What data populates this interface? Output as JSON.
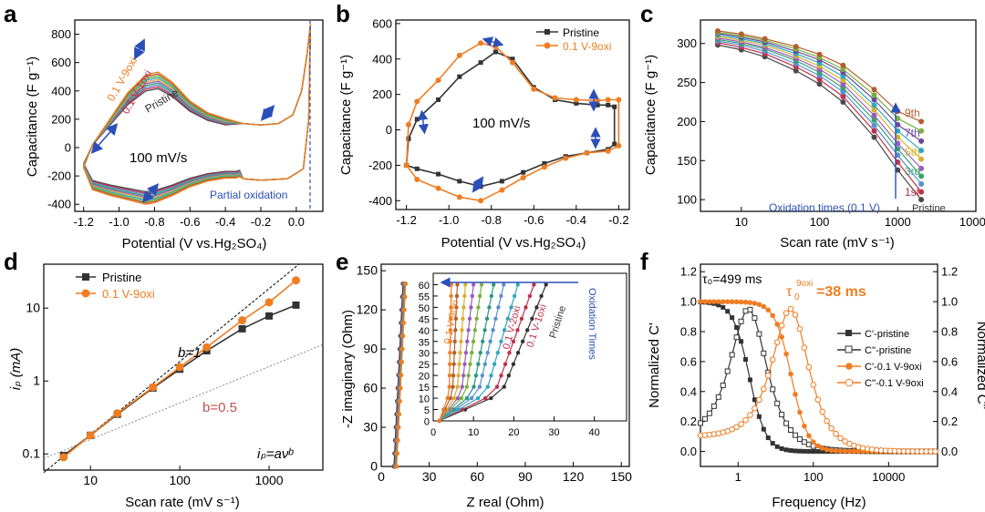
{
  "figure": {
    "colors": {
      "pristine": "#333333",
      "oxi": "#ef7d22",
      "axis": "#000000",
      "arrow": "#2b4fb8",
      "b05": "#c05050"
    },
    "panels": [
      {
        "letter": "a"
      },
      {
        "letter": "b"
      },
      {
        "letter": "c"
      },
      {
        "letter": "d"
      },
      {
        "letter": "e"
      },
      {
        "letter": "f"
      }
    ]
  },
  "chart_data": [
    {
      "panel": "a",
      "type": "line",
      "xlabel": "Potential (V vs.Hg₂SO₄)",
      "ylabel": "Capacitance (F g⁻¹)",
      "xlim": [
        -1.25,
        0.15
      ],
      "ylim": [
        -450,
        900
      ],
      "xticks": [
        "-1.2",
        "-1.0",
        "-0.8",
        "-0.6",
        "-0.4",
        "-0.2",
        "0.0"
      ],
      "xtick_values": [
        -1.2,
        -1.0,
        -0.8,
        -0.6,
        -0.4,
        -0.2,
        0.0
      ],
      "yticks": [
        "-400",
        "-200",
        "0",
        "200",
        "400",
        "600",
        "800"
      ],
      "ytick_values": [
        -400,
        -200,
        0,
        200,
        400,
        600,
        800
      ],
      "annotations": {
        "rate": "100 mV/s",
        "partial": "Partial oxidation",
        "l1": "0.1 V-9oxi",
        "l2": "0.1 V-1oxi",
        "l3": "Pristine"
      },
      "series_colors": [
        "#4a4a4a",
        "#c0304a",
        "#5a8fd0",
        "#3aa070",
        "#9a5bc0",
        "#d5b030",
        "#2fa8c0",
        "#7bb040",
        "#b06030",
        "#ef7d22"
      ],
      "anodic": [
        [
          -1.2,
          -140
        ],
        [
          -1.15,
          20
        ],
        [
          -1.05,
          200
        ],
        [
          -0.95,
          380
        ],
        [
          -0.85,
          500
        ],
        [
          -0.78,
          520
        ],
        [
          -0.7,
          450
        ],
        [
          -0.6,
          320
        ],
        [
          -0.5,
          240
        ],
        [
          -0.4,
          200
        ],
        [
          -0.3,
          170
        ],
        [
          -0.2,
          160
        ],
        [
          -0.1,
          170
        ],
        [
          -0.02,
          230
        ],
        [
          0.03,
          400
        ],
        [
          0.06,
          650
        ],
        [
          0.08,
          870
        ]
      ],
      "cathodic": [
        [
          0.08,
          870
        ],
        [
          0.07,
          200
        ],
        [
          0.04,
          -150
        ],
        [
          -0.05,
          -220
        ],
        [
          -0.2,
          -230
        ],
        [
          -0.3,
          -220
        ],
        [
          -0.32,
          -200
        ],
        [
          -0.34,
          -210
        ],
        [
          -0.4,
          -210
        ],
        [
          -0.5,
          -230
        ],
        [
          -0.6,
          -270
        ],
        [
          -0.7,
          -330
        ],
        [
          -0.8,
          -380
        ],
        [
          -0.85,
          -390
        ],
        [
          -0.95,
          -360
        ],
        [
          -1.05,
          -330
        ],
        [
          -1.15,
          -290
        ],
        [
          -1.2,
          -140
        ]
      ]
    },
    {
      "panel": "b",
      "type": "line",
      "xlabel": "Potential (V vs.Hg₂SO₄)",
      "ylabel": "Capacitance (F g⁻¹)",
      "xlim": [
        -1.25,
        -0.15
      ],
      "ylim": [
        -450,
        620
      ],
      "xticks": [
        "-1.2",
        "-1.0",
        "-0.8",
        "-0.6",
        "-0.4",
        "-0.2"
      ],
      "xtick_values": [
        -1.2,
        -1.0,
        -0.8,
        -0.6,
        -0.4,
        -0.2
      ],
      "yticks": [
        "-400",
        "-200",
        "0",
        "200",
        "400",
        "600"
      ],
      "ytick_values": [
        -400,
        -200,
        0,
        200,
        400,
        600
      ],
      "annotations": {
        "rate": "100 mV/s"
      },
      "legend": [
        "Pristine",
        "0.1 V-9oxi"
      ],
      "series": [
        {
          "name": "Pristine",
          "points": [
            [
              -1.2,
              -200
            ],
            [
              -1.19,
              -50
            ],
            [
              -1.15,
              60
            ],
            [
              -1.05,
              170
            ],
            [
              -0.95,
              300
            ],
            [
              -0.85,
              380
            ],
            [
              -0.78,
              440
            ],
            [
              -0.7,
              400
            ],
            [
              -0.6,
              240
            ],
            [
              -0.5,
              170
            ],
            [
              -0.4,
              150
            ],
            [
              -0.3,
              140
            ],
            [
              -0.25,
              140
            ],
            [
              -0.22,
              130
            ],
            [
              -0.22,
              -80
            ],
            [
              -0.25,
              -110
            ],
            [
              -0.35,
              -130
            ],
            [
              -0.45,
              -150
            ],
            [
              -0.55,
              -190
            ],
            [
              -0.65,
              -240
            ],
            [
              -0.75,
              -290
            ],
            [
              -0.85,
              -320
            ],
            [
              -0.95,
              -290
            ],
            [
              -1.05,
              -250
            ],
            [
              -1.15,
              -220
            ],
            [
              -1.2,
              -200
            ]
          ]
        },
        {
          "name": "0.1 V-9oxi",
          "points": [
            [
              -1.2,
              -200
            ],
            [
              -1.19,
              30
            ],
            [
              -1.15,
              160
            ],
            [
              -1.05,
              280
            ],
            [
              -0.95,
              420
            ],
            [
              -0.85,
              490
            ],
            [
              -0.78,
              470
            ],
            [
              -0.7,
              380
            ],
            [
              -0.6,
              230
            ],
            [
              -0.5,
              180
            ],
            [
              -0.4,
              170
            ],
            [
              -0.3,
              165
            ],
            [
              -0.25,
              170
            ],
            [
              -0.2,
              170
            ],
            [
              -0.2,
              -90
            ],
            [
              -0.25,
              -120
            ],
            [
              -0.35,
              -130
            ],
            [
              -0.45,
              -160
            ],
            [
              -0.55,
              -210
            ],
            [
              -0.65,
              -270
            ],
            [
              -0.75,
              -340
            ],
            [
              -0.85,
              -400
            ],
            [
              -0.95,
              -380
            ],
            [
              -1.05,
              -330
            ],
            [
              -1.15,
              -280
            ],
            [
              -1.2,
              -200
            ]
          ]
        }
      ]
    },
    {
      "panel": "c",
      "type": "line",
      "xlabel": "Scan rate (mV s⁻¹)",
      "ylabel": "Capacitance (F g⁻¹)",
      "xscale": "log",
      "xlim": [
        3,
        10000
      ],
      "ylim": [
        85,
        330
      ],
      "xticks": [
        "10",
        "100",
        "1000",
        "10000"
      ],
      "xtick_values": [
        10,
        100,
        1000,
        10000
      ],
      "yticks": [
        "100",
        "150",
        "200",
        "250",
        "300"
      ],
      "ytick_values": [
        100,
        150,
        200,
        250,
        300
      ],
      "x": [
        5,
        10,
        20,
        50,
        100,
        200,
        500,
        1000,
        2000
      ],
      "labels": [
        "9th",
        "7th",
        "5th",
        "3rd",
        "1st"
      ],
      "label_colors": [
        "#b06030",
        "#6a4aa0",
        "#d5b030",
        "#3aa070",
        "#c0304a"
      ],
      "series_colors": [
        "#4a4a4a",
        "#c0304a",
        "#5a8fd0",
        "#3aa070",
        "#9a5bc0",
        "#d5b030",
        "#2fa8c0",
        "#6a4aa0",
        "#7bb040",
        "#b06030"
      ],
      "series": [
        {
          "values": [
            298,
            292,
            283,
            265,
            248,
            225,
            180,
            138,
            100
          ]
        },
        {
          "values": [
            301,
            295,
            287,
            270,
            254,
            232,
            188,
            148,
            110
          ]
        },
        {
          "values": [
            303,
            298,
            290,
            274,
            259,
            238,
            195,
            157,
            120
          ]
        },
        {
          "values": [
            305,
            300,
            293,
            278,
            263,
            243,
            202,
            165,
            130
          ]
        },
        {
          "values": [
            307,
            302,
            295,
            281,
            267,
            248,
            208,
            172,
            140
          ]
        },
        {
          "values": [
            309,
            304,
            298,
            284,
            271,
            253,
            215,
            180,
            152
          ]
        },
        {
          "values": [
            311,
            306,
            300,
            287,
            275,
            258,
            221,
            188,
            163
          ]
        },
        {
          "values": [
            313,
            308,
            302,
            290,
            279,
            263,
            228,
            196,
            175
          ]
        },
        {
          "values": [
            314,
            310,
            304,
            293,
            282,
            267,
            234,
            204,
            188
          ]
        },
        {
          "values": [
            316,
            312,
            306,
            296,
            286,
            272,
            241,
            213,
            200
          ]
        }
      ],
      "annotations": {
        "oxidation": "Oxidation times (0.1 V)",
        "pristine": "Pristine"
      }
    },
    {
      "panel": "d",
      "type": "line",
      "xlabel": "Scan rate (mV s⁻¹)",
      "ylabel": "iₚ (mA)",
      "xscale": "log",
      "yscale": "log",
      "xlim": [
        3,
        4000
      ],
      "ylim": [
        0.06,
        40
      ],
      "xticks": [
        "10",
        "100",
        "1000"
      ],
      "xtick_values": [
        10,
        100,
        1000
      ],
      "yticks": [
        "0.1",
        "1",
        "10"
      ],
      "ytick_values": [
        0.1,
        1,
        10
      ],
      "x": [
        5,
        10,
        20,
        50,
        100,
        200,
        500,
        1000,
        2000
      ],
      "legend": [
        "Pristine",
        "0.1 V-9oxi"
      ],
      "series": [
        {
          "name": "Pristine",
          "values": [
            0.095,
            0.18,
            0.35,
            0.8,
            1.45,
            2.6,
            5.2,
            7.8,
            11
          ]
        },
        {
          "name": "0.1 V-9oxi",
          "values": [
            0.09,
            0.18,
            0.36,
            0.82,
            1.55,
            2.9,
            6.8,
            12,
            24
          ]
        }
      ],
      "annotations": {
        "b1": "b=1",
        "b05": "b=0.5",
        "eq": "iₚ=aνᵇ"
      }
    },
    {
      "panel": "e",
      "type": "scatter",
      "xlabel": "Z real (Ohm)",
      "ylabel": "-Z imaginary (Ohm)",
      "xlim": [
        0,
        155
      ],
      "ylim": [
        0,
        155
      ],
      "xticks": [
        "0",
        "30",
        "60",
        "90",
        "120",
        "150"
      ],
      "xtick_values": [
        0,
        30,
        60,
        90,
        120,
        150
      ],
      "yticks": [
        "0",
        "30",
        "60",
        "90",
        "120",
        "150"
      ],
      "ytick_values": [
        0,
        30,
        60,
        90,
        120,
        150
      ],
      "inset": {
        "xlim": [
          0,
          48
        ],
        "ylim": [
          0,
          65
        ],
        "xticks": [
          "0",
          "10",
          "20",
          "30",
          "40"
        ],
        "xtick_values": [
          0,
          10,
          20,
          30,
          40
        ],
        "yticks": [
          "0",
          "5",
          "10",
          "15",
          "20",
          "25",
          "30",
          "35",
          "40",
          "45",
          "50",
          "55",
          "60"
        ],
        "ytick_values": [
          0,
          5,
          10,
          15,
          20,
          25,
          30,
          35,
          40,
          45,
          50,
          55,
          60
        ],
        "curve_ends": [
          28,
          25,
          21,
          17.5,
          15,
          12,
          10,
          8,
          6,
          4.5
        ],
        "labels": {
          "l1": "0.1 V-9oxi",
          "l2": "0.1 V-2oxi",
          "l3": "0.1 V-1oxi",
          "l4": "Pristine",
          "arrow": "Oxidation Times"
        }
      }
    },
    {
      "panel": "f",
      "type": "line",
      "xlabel": "Frequency (Hz)",
      "ylabel": "Normalized C'",
      "ylabel_right": "Normalized C''",
      "xscale": "log",
      "xlim": [
        0.1,
        200000
      ],
      "ylim": [
        -0.1,
        1.25
      ],
      "xticks": [
        "1",
        "100",
        "10000"
      ],
      "xtick_values": [
        1,
        100,
        10000
      ],
      "yticks": [
        "0.0",
        "0.2",
        "0.4",
        "0.6",
        "0.8",
        "1.0",
        "1.2"
      ],
      "ytick_values": [
        0,
        0.2,
        0.4,
        0.6,
        0.8,
        1.0,
        1.2
      ],
      "legend": [
        "C'-pristine",
        "C''-pristine",
        "C'-0.1 V-9oxi",
        "C''-0.1 V-9oxi"
      ],
      "annotations": {
        "tau1": "τ₀=499 ms",
        "tau2": "=38 ms"
      },
      "peak_freq": {
        "pristine": 2.0,
        "oxi": 26.0
      }
    }
  ]
}
